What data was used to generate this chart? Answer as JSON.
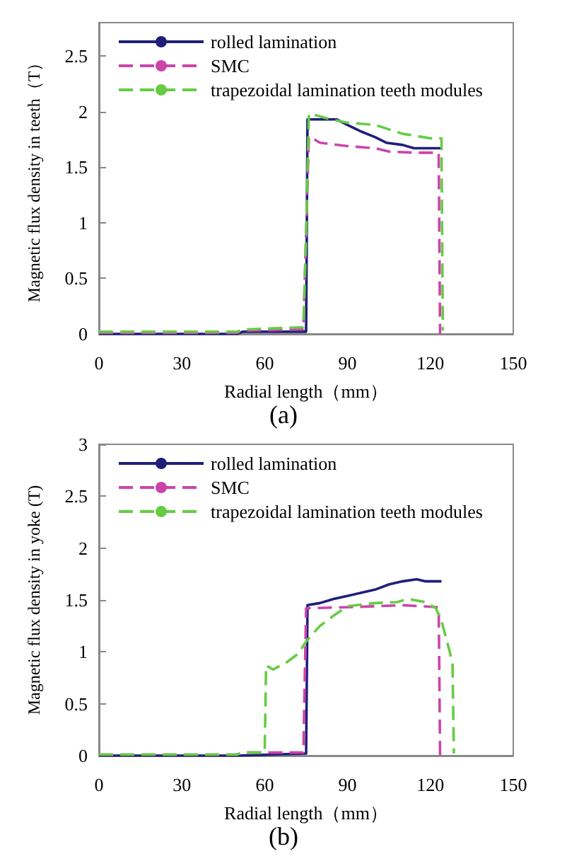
{
  "chart_data": [
    {
      "type": "line",
      "xlabel": "Radial length（mm）",
      "ylabel": "Magnetic flux density in teeth（T）",
      "annotations": [
        "(a)"
      ],
      "xlim": [
        0,
        150
      ],
      "xticks": [
        0,
        30,
        60,
        90,
        120,
        150
      ],
      "ylim": [
        0,
        2.8
      ],
      "yticks": [
        0,
        0.5,
        1,
        1.5,
        2,
        2.5
      ],
      "grid": false,
      "legend": "top left",
      "marker": "none",
      "series": [
        {
          "name": "rolled lamination",
          "color": "#1f1f7a",
          "line_style": "solid",
          "x": [
            0,
            50,
            52,
            75,
            75.5,
            86,
            90,
            95,
            100,
            104,
            110,
            114,
            124
          ],
          "values": [
            0,
            0,
            0.02,
            0.02,
            1.93,
            1.93,
            1.88,
            1.82,
            1.77,
            1.72,
            1.7,
            1.67,
            1.67
          ]
        },
        {
          "name": "SMC",
          "color": "#cc44aa",
          "line_style": "dashed",
          "x": [
            0,
            50,
            52,
            74,
            76,
            78,
            80,
            90,
            100,
            105,
            115,
            123,
            123.5
          ],
          "values": [
            0.01,
            0.01,
            0.03,
            0.04,
            1.77,
            1.75,
            1.72,
            1.69,
            1.67,
            1.64,
            1.63,
            1.63,
            0
          ]
        },
        {
          "name": "trapezoidal lamination teeth modules",
          "color": "#66cc44",
          "line_style": "dashed",
          "x": [
            0,
            50,
            52,
            74,
            75,
            76,
            78,
            84,
            90,
            100,
            110,
            120,
            124,
            124.5
          ],
          "values": [
            0.02,
            0.02,
            0.04,
            0.06,
            0.9,
            1.98,
            1.97,
            1.93,
            1.9,
            1.88,
            1.8,
            1.76,
            1.76,
            0.03
          ]
        }
      ]
    },
    {
      "type": "line",
      "xlabel": "Radial length（mm）",
      "ylabel": "Magnetic flux density in yoke (T)",
      "annotations": [
        "(b)"
      ],
      "xlim": [
        0,
        150
      ],
      "xticks": [
        0,
        30,
        60,
        90,
        120,
        150
      ],
      "ylim": [
        0,
        3
      ],
      "yticks": [
        0,
        0.5,
        1,
        1.5,
        2,
        2.5,
        3
      ],
      "grid": false,
      "legend": "top left",
      "marker": "none",
      "series": [
        {
          "name": "rolled lamination",
          "color": "#1f1f7a",
          "line_style": "solid",
          "x": [
            0,
            50,
            75,
            75.5,
            80,
            85,
            90,
            95,
            100,
            105,
            110,
            115,
            118,
            124
          ],
          "values": [
            0,
            0,
            0.02,
            1.45,
            1.47,
            1.51,
            1.54,
            1.57,
            1.6,
            1.65,
            1.68,
            1.7,
            1.68,
            1.68
          ]
        },
        {
          "name": "SMC",
          "color": "#cc44aa",
          "line_style": "dashed",
          "x": [
            0,
            50,
            52,
            74,
            75,
            90,
            110,
            123,
            123.5
          ],
          "values": [
            0.01,
            0.01,
            0.03,
            0.03,
            1.42,
            1.43,
            1.45,
            1.43,
            0
          ]
        },
        {
          "name": "trapezoidal lamination teeth modules",
          "color": "#66cc44",
          "line_style": "dashed",
          "x": [
            0,
            50,
            52,
            60,
            60.5,
            63,
            68,
            72,
            75,
            80,
            85,
            90,
            100,
            108,
            112,
            118,
            122,
            124,
            125,
            127,
            128,
            128.5
          ],
          "values": [
            0.01,
            0.01,
            0.03,
            0.03,
            0.87,
            0.83,
            0.9,
            0.98,
            1.1,
            1.25,
            1.35,
            1.44,
            1.47,
            1.48,
            1.51,
            1.48,
            1.42,
            1.3,
            1.2,
            1,
            0.88,
            0.02
          ]
        }
      ]
    }
  ]
}
